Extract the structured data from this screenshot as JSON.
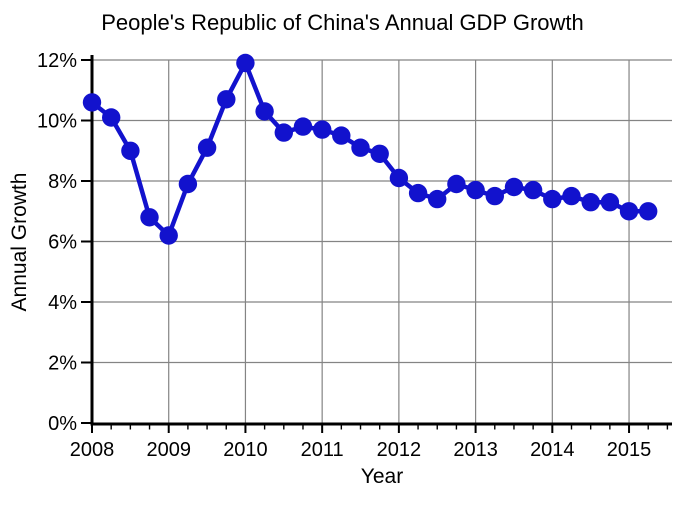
{
  "chart_data": {
    "type": "line",
    "title": "People's Republic of China's Annual GDP Growth",
    "xlabel": "Year",
    "ylabel": "Annual Growth",
    "x": [
      2008.0,
      2008.25,
      2008.5,
      2008.75,
      2009.0,
      2009.25,
      2009.5,
      2009.75,
      2010.0,
      2010.25,
      2010.5,
      2010.75,
      2011.0,
      2011.25,
      2011.5,
      2011.75,
      2012.0,
      2012.25,
      2012.5,
      2012.75,
      2013.0,
      2013.25,
      2013.5,
      2013.75,
      2014.0,
      2014.25,
      2014.5,
      2014.75,
      2015.0,
      2015.25
    ],
    "values": [
      10.6,
      10.1,
      9.0,
      6.8,
      6.2,
      7.9,
      9.1,
      10.7,
      11.9,
      10.3,
      9.6,
      9.8,
      9.7,
      9.5,
      9.1,
      8.9,
      8.1,
      7.6,
      7.4,
      7.9,
      7.7,
      7.5,
      7.8,
      7.7,
      7.4,
      7.5,
      7.3,
      7.3,
      7.0,
      7.0
    ],
    "xlim": [
      2008,
      2015.56
    ],
    "ylim": [
      0,
      12
    ],
    "x_major_ticks": [
      2008,
      2009,
      2010,
      2011,
      2012,
      2013,
      2014,
      2015
    ],
    "x_tick_labels": [
      "2008",
      "2009",
      "2010",
      "2011",
      "2012",
      "2013",
      "2014",
      "2015"
    ],
    "x_minor_tick_interval": 0.25,
    "y_major_ticks": [
      0,
      2,
      4,
      6,
      8,
      10,
      12
    ],
    "y_tick_labels": [
      "0%",
      "2%",
      "4%",
      "6%",
      "8%",
      "10%",
      "12%"
    ],
    "grid": true,
    "legend": "none",
    "line_color": "#1212cd",
    "grid_color": "#848484",
    "axis_color": "#000000",
    "marker": "circle"
  }
}
